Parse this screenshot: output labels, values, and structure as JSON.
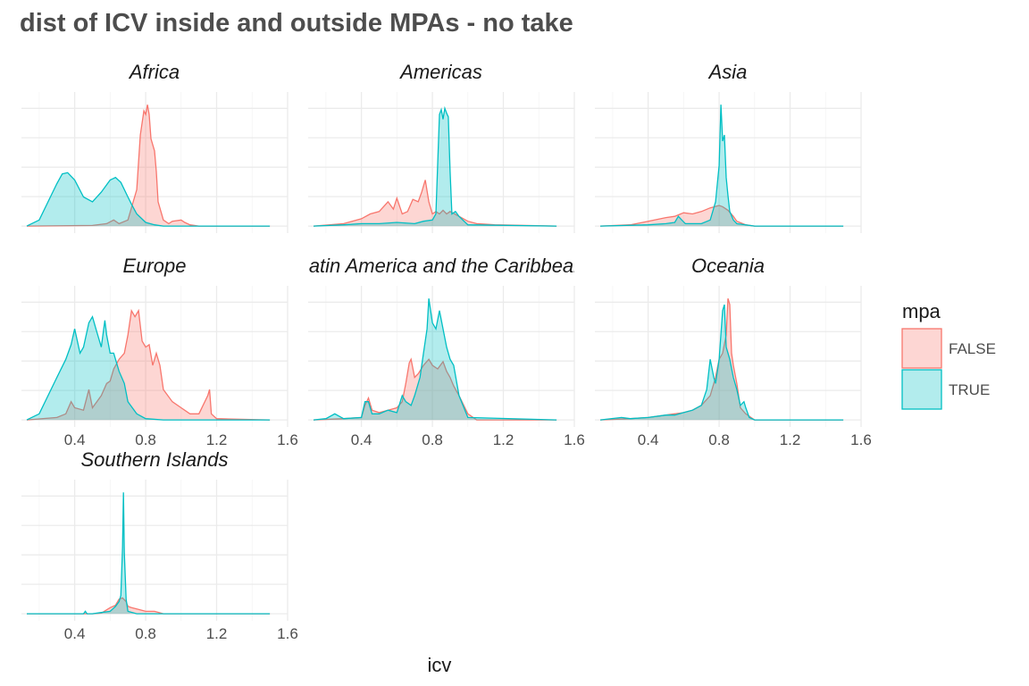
{
  "title": "dist of ICV inside and outside MPAs - no take",
  "chart_data": {
    "type": "area",
    "subtype": "facetted density",
    "xlabel": "icv",
    "ylabel": "",
    "xlim": [
      0.1,
      1.6
    ],
    "x_ticks": [
      0.4,
      0.8,
      1.2,
      1.6
    ],
    "x_tick_labels": [
      "0.4",
      "0.8",
      "1.2",
      "1.6"
    ],
    "grid": true,
    "legend": {
      "title": "mpa",
      "position": "right",
      "entries": [
        {
          "label": "FALSE",
          "color": "#F8766D"
        },
        {
          "label": "TRUE",
          "color": "#00BFC4"
        }
      ]
    },
    "series_colors": {
      "FALSE": "#F8766D",
      "TRUE": "#00BFC4"
    },
    "facets": [
      {
        "name": "Africa",
        "series": [
          {
            "name": "FALSE",
            "x": [
              0.13,
              0.5,
              0.58,
              0.62,
              0.65,
              0.7,
              0.75,
              0.77,
              0.79,
              0.8,
              0.81,
              0.82,
              0.83,
              0.85,
              0.86,
              0.87,
              0.9,
              0.93,
              0.95,
              1.0,
              1.02,
              1.05,
              1.1,
              1.5
            ],
            "y": [
              0,
              0.005,
              0.02,
              0.05,
              0.02,
              0.05,
              0.3,
              0.75,
              0.95,
              0.92,
              1.0,
              0.92,
              0.72,
              0.62,
              0.45,
              0.2,
              0.05,
              0.02,
              0.04,
              0.05,
              0.03,
              0.01,
              0,
              0
            ]
          },
          {
            "name": "TRUE",
            "x": [
              0.13,
              0.2,
              0.25,
              0.3,
              0.33,
              0.36,
              0.4,
              0.45,
              0.5,
              0.55,
              0.6,
              0.63,
              0.66,
              0.7,
              0.72,
              0.75,
              0.8,
              0.85,
              0.9,
              1.0,
              1.5
            ],
            "y": [
              0,
              0.05,
              0.2,
              0.35,
              0.43,
              0.44,
              0.38,
              0.24,
              0.2,
              0.28,
              0.38,
              0.4,
              0.36,
              0.24,
              0.18,
              0.1,
              0.03,
              0.01,
              0,
              0,
              0
            ]
          }
        ]
      },
      {
        "name": "Americas",
        "series": [
          {
            "name": "FALSE",
            "x": [
              0.13,
              0.3,
              0.4,
              0.45,
              0.5,
              0.55,
              0.58,
              0.6,
              0.63,
              0.66,
              0.69,
              0.72,
              0.74,
              0.76,
              0.78,
              0.8,
              0.82,
              0.84,
              0.86,
              0.88,
              0.9,
              0.95,
              1.0,
              1.05,
              1.15,
              1.5
            ],
            "y": [
              0,
              0.02,
              0.06,
              0.1,
              0.12,
              0.2,
              0.14,
              0.23,
              0.1,
              0.12,
              0.22,
              0.2,
              0.28,
              0.38,
              0.2,
              0.1,
              0.12,
              0.1,
              0.13,
              0.1,
              0.12,
              0.08,
              0.04,
              0.02,
              0.01,
              0
            ]
          },
          {
            "name": "TRUE",
            "x": [
              0.13,
              0.3,
              0.4,
              0.5,
              0.6,
              0.7,
              0.75,
              0.8,
              0.82,
              0.84,
              0.85,
              0.86,
              0.87,
              0.88,
              0.89,
              0.9,
              0.91,
              0.93,
              0.95,
              1.0,
              1.5
            ],
            "y": [
              0,
              0.01,
              0.02,
              0.02,
              0.03,
              0.02,
              0.04,
              0.05,
              0.1,
              0.92,
              0.96,
              0.88,
              0.97,
              0.93,
              0.9,
              0.45,
              0.1,
              0.12,
              0.08,
              0.01,
              0
            ]
          }
        ]
      },
      {
        "name": "Asia",
        "series": [
          {
            "name": "FALSE",
            "x": [
              0.13,
              0.3,
              0.4,
              0.5,
              0.55,
              0.6,
              0.65,
              0.7,
              0.75,
              0.8,
              0.82,
              0.85,
              0.88,
              0.9,
              0.95,
              1.0,
              1.5
            ],
            "y": [
              0,
              0.01,
              0.04,
              0.07,
              0.08,
              0.11,
              0.1,
              0.12,
              0.15,
              0.17,
              0.16,
              0.13,
              0.08,
              0.04,
              0.01,
              0,
              0
            ]
          },
          {
            "name": "TRUE",
            "x": [
              0.13,
              0.4,
              0.5,
              0.55,
              0.57,
              0.59,
              0.61,
              0.65,
              0.7,
              0.75,
              0.78,
              0.8,
              0.81,
              0.82,
              0.83,
              0.84,
              0.85,
              0.86,
              0.88,
              0.9,
              1.0,
              1.5
            ],
            "y": [
              0,
              0.01,
              0.02,
              0.03,
              0.08,
              0.05,
              0.02,
              0.02,
              0.02,
              0.05,
              0.2,
              0.5,
              1.0,
              0.7,
              0.75,
              0.4,
              0.25,
              0.12,
              0.05,
              0.02,
              0,
              0
            ]
          }
        ]
      },
      {
        "name": "Europe",
        "series": [
          {
            "name": "FALSE",
            "x": [
              0.13,
              0.3,
              0.35,
              0.38,
              0.4,
              0.45,
              0.48,
              0.5,
              0.55,
              0.58,
              0.6,
              0.62,
              0.65,
              0.68,
              0.7,
              0.72,
              0.74,
              0.76,
              0.78,
              0.8,
              0.82,
              0.84,
              0.86,
              0.88,
              0.9,
              0.95,
              1.0,
              1.05,
              1.1,
              1.15,
              1.16,
              1.17,
              1.2,
              1.5
            ],
            "y": [
              0,
              0.02,
              0.05,
              0.15,
              0.1,
              0.08,
              0.25,
              0.1,
              0.2,
              0.3,
              0.32,
              0.42,
              0.5,
              0.55,
              0.7,
              0.9,
              0.85,
              0.9,
              0.65,
              0.6,
              0.62,
              0.45,
              0.55,
              0.45,
              0.25,
              0.15,
              0.1,
              0.05,
              0.05,
              0.2,
              0.25,
              0.05,
              0.01,
              0
            ]
          },
          {
            "name": "TRUE",
            "x": [
              0.13,
              0.2,
              0.25,
              0.3,
              0.35,
              0.38,
              0.4,
              0.43,
              0.45,
              0.48,
              0.5,
              0.52,
              0.55,
              0.57,
              0.58,
              0.6,
              0.62,
              0.65,
              0.68,
              0.7,
              0.75,
              0.8,
              0.9,
              1.5
            ],
            "y": [
              0,
              0.05,
              0.2,
              0.35,
              0.5,
              0.62,
              0.75,
              0.55,
              0.6,
              0.8,
              0.85,
              0.75,
              0.6,
              0.82,
              0.7,
              0.55,
              0.55,
              0.4,
              0.3,
              0.15,
              0.05,
              0.01,
              0,
              0
            ]
          }
        ]
      },
      {
        "name": "Latin America and the Caribbean",
        "series": [
          {
            "name": "FALSE",
            "x": [
              0.13,
              0.3,
              0.4,
              0.42,
              0.44,
              0.46,
              0.5,
              0.55,
              0.6,
              0.63,
              0.65,
              0.67,
              0.68,
              0.7,
              0.72,
              0.75,
              0.78,
              0.8,
              0.83,
              0.86,
              0.88,
              0.9,
              0.92,
              0.95,
              1.0,
              1.05,
              1.5
            ],
            "y": [
              0,
              0.01,
              0.02,
              0.12,
              0.18,
              0.08,
              0.06,
              0.08,
              0.1,
              0.15,
              0.3,
              0.47,
              0.5,
              0.35,
              0.38,
              0.45,
              0.5,
              0.45,
              0.42,
              0.48,
              0.4,
              0.35,
              0.28,
              0.2,
              0.05,
              0,
              0
            ]
          },
          {
            "name": "TRUE",
            "x": [
              0.13,
              0.2,
              0.25,
              0.3,
              0.4,
              0.42,
              0.44,
              0.46,
              0.5,
              0.55,
              0.6,
              0.63,
              0.65,
              0.68,
              0.7,
              0.73,
              0.75,
              0.77,
              0.78,
              0.8,
              0.82,
              0.84,
              0.86,
              0.88,
              0.9,
              0.92,
              0.95,
              1.0,
              1.5
            ],
            "y": [
              0,
              0.01,
              0.05,
              0.01,
              0.02,
              0.15,
              0.15,
              0.05,
              0.05,
              0.08,
              0.06,
              0.2,
              0.15,
              0.12,
              0.2,
              0.35,
              0.55,
              0.75,
              1.0,
              0.8,
              0.75,
              0.9,
              0.75,
              0.6,
              0.5,
              0.45,
              0.2,
              0.02,
              0
            ]
          }
        ]
      },
      {
        "name": "Oceania",
        "series": [
          {
            "name": "FALSE",
            "x": [
              0.13,
              0.3,
              0.4,
              0.5,
              0.55,
              0.6,
              0.65,
              0.7,
              0.75,
              0.78,
              0.8,
              0.82,
              0.84,
              0.85,
              0.86,
              0.87,
              0.88,
              0.9,
              0.92,
              0.95,
              1.0,
              1.5
            ],
            "y": [
              0,
              0.01,
              0.02,
              0.04,
              0.05,
              0.06,
              0.08,
              0.12,
              0.2,
              0.35,
              0.5,
              0.55,
              0.7,
              1.0,
              0.95,
              0.55,
              0.45,
              0.3,
              0.1,
              0.05,
              0,
              0
            ]
          },
          {
            "name": "TRUE",
            "x": [
              0.13,
              0.25,
              0.3,
              0.4,
              0.5,
              0.55,
              0.6,
              0.65,
              0.7,
              0.73,
              0.75,
              0.77,
              0.78,
              0.8,
              0.82,
              0.83,
              0.84,
              0.86,
              0.88,
              0.9,
              0.92,
              0.94,
              0.95,
              0.97,
              1.0,
              1.5
            ],
            "y": [
              0,
              0.02,
              0.01,
              0.02,
              0.04,
              0.04,
              0.06,
              0.08,
              0.12,
              0.25,
              0.5,
              0.35,
              0.3,
              0.5,
              0.9,
              0.95,
              0.6,
              0.5,
              0.35,
              0.25,
              0.12,
              0.15,
              0.1,
              0.02,
              0,
              0
            ]
          }
        ]
      },
      {
        "name": "Southern Islands",
        "series": [
          {
            "name": "FALSE",
            "x": [
              0.13,
              0.5,
              0.55,
              0.6,
              0.63,
              0.65,
              0.67,
              0.69,
              0.7,
              0.72,
              0.75,
              0.8,
              0.85,
              0.9,
              1.5
            ],
            "y": [
              0,
              0,
              0.005,
              0.05,
              0.07,
              0.12,
              0.13,
              0.1,
              0.06,
              0.05,
              0.04,
              0.02,
              0.02,
              0,
              0
            ]
          },
          {
            "name": "TRUE",
            "x": [
              0.13,
              0.4,
              0.45,
              0.46,
              0.47,
              0.5,
              0.55,
              0.6,
              0.63,
              0.65,
              0.66,
              0.67,
              0.675,
              0.68,
              0.69,
              0.7,
              0.75,
              1.5
            ],
            "y": [
              0,
              0,
              0,
              0.02,
              0,
              0,
              0.01,
              0.02,
              0.06,
              0.1,
              0.15,
              0.55,
              1.0,
              0.5,
              0.12,
              0.02,
              0,
              0
            ]
          }
        ]
      }
    ]
  }
}
